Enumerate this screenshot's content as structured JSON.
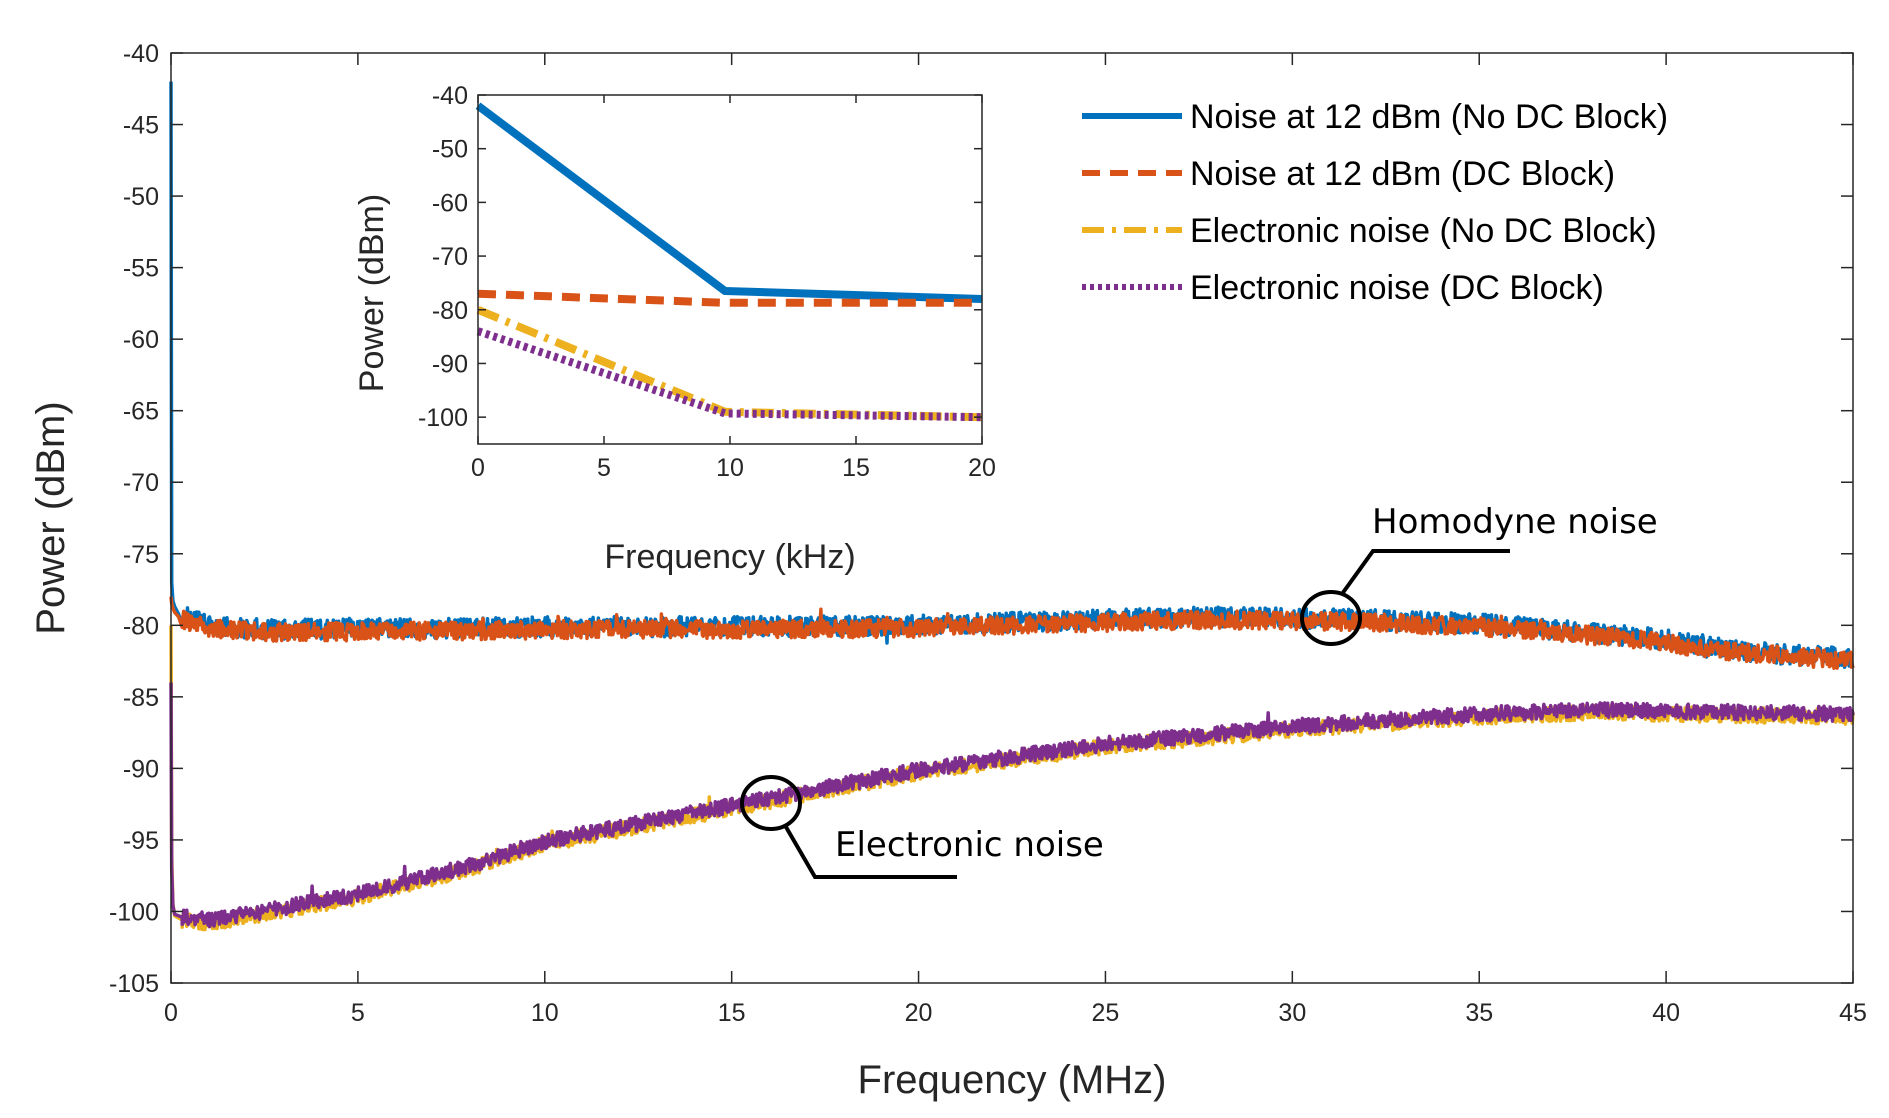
{
  "chart_data": [
    {
      "type": "line",
      "xlabel": "Frequency (MHz)",
      "ylabel": "Power (dBm)",
      "xlim": [
        0,
        45
      ],
      "ylim": [
        -105,
        -40
      ],
      "xticks": [
        0,
        5,
        10,
        15,
        20,
        25,
        30,
        35,
        40,
        45
      ],
      "yticks": [
        -105,
        -100,
        -95,
        -90,
        -85,
        -80,
        -75,
        -70,
        -65,
        -60,
        -55,
        -50,
        -45,
        -40
      ],
      "legend_position": "top-right",
      "series": [
        {
          "name": "Noise at 12 dBm (No DC Block)",
          "color": "#0072BD",
          "style": "solid",
          "x": [
            0,
            0.02,
            0.05,
            0.1,
            0.2,
            0.5,
            1,
            2,
            3,
            5,
            8,
            10,
            15,
            20,
            25,
            28,
            30,
            32,
            35,
            38,
            40,
            41,
            43,
            45
          ],
          "y": [
            -42,
            -77,
            -78.3,
            -78.7,
            -79.2,
            -79.5,
            -80,
            -80.2,
            -80.3,
            -80.2,
            -80.2,
            -80.1,
            -80.1,
            -80,
            -79.6,
            -79.4,
            -79.5,
            -79.6,
            -79.9,
            -80.5,
            -81,
            -81.5,
            -82,
            -82.3
          ]
        },
        {
          "name": "Noise at 12 dBm (DC Block)",
          "color": "#D95319",
          "style": "dashed",
          "x": [
            0,
            0.02,
            0.05,
            0.1,
            0.2,
            0.5,
            1,
            2,
            3,
            5,
            8,
            10,
            15,
            20,
            25,
            28,
            30,
            32,
            35,
            38,
            40,
            41,
            43,
            45
          ],
          "y": [
            -78,
            -78.5,
            -78.8,
            -79.1,
            -79.4,
            -79.8,
            -80.2,
            -80.4,
            -80.5,
            -80.4,
            -80.4,
            -80.3,
            -80.3,
            -80.2,
            -79.8,
            -79.6,
            -79.7,
            -79.8,
            -80.1,
            -80.7,
            -81.2,
            -81.7,
            -82.1,
            -82.5
          ]
        },
        {
          "name": "Electronic noise (No DC Block)",
          "color": "#EDB120",
          "style": "dashdot",
          "x": [
            0,
            0.02,
            0.05,
            0.1,
            0.3,
            1,
            2,
            5,
            8,
            10,
            12,
            15,
            18,
            20,
            25,
            30,
            32,
            35,
            38,
            40,
            45
          ],
          "y": [
            -80,
            -96,
            -99.5,
            -100.3,
            -100.6,
            -100.8,
            -100.4,
            -99,
            -97,
            -95.3,
            -94.3,
            -92.8,
            -91.3,
            -90.3,
            -88.5,
            -87.3,
            -86.9,
            -86.4,
            -86.1,
            -86.2,
            -86.4
          ]
        },
        {
          "name": "Electronic noise (DC Block)",
          "color": "#7E2F8E",
          "style": "dotted",
          "x": [
            0,
            0.02,
            0.05,
            0.1,
            0.3,
            1,
            2,
            5,
            8,
            10,
            12,
            15,
            18,
            20,
            25,
            30,
            32,
            35,
            38,
            40,
            45
          ],
          "y": [
            -84,
            -97,
            -99.6,
            -100.2,
            -100.4,
            -100.6,
            -100.2,
            -98.8,
            -96.8,
            -95.1,
            -94.1,
            -92.6,
            -91.1,
            -90.1,
            -88.3,
            -87.1,
            -86.7,
            -86.2,
            -85.9,
            -86,
            -86.2
          ]
        }
      ],
      "annotations": [
        {
          "text": "Homodyne noise",
          "target_x": 31,
          "target_y": -79.8
        },
        {
          "text": "Electronic noise",
          "target_x": 16,
          "target_y": -92.5
        }
      ]
    },
    {
      "type": "line",
      "role": "inset",
      "xlabel": "Frequency (kHz)",
      "ylabel": "Power (dBm)",
      "xlim": [
        0,
        20
      ],
      "ylim": [
        -105,
        -40
      ],
      "xticks": [
        0,
        5,
        10,
        15,
        20
      ],
      "yticks": [
        -100,
        -90,
        -80,
        -70,
        -60,
        -50,
        -40
      ],
      "series": [
        {
          "name": "Noise at 12 dBm (No DC Block)",
          "color": "#0072BD",
          "style": "solid",
          "x": [
            0,
            9.8,
            20
          ],
          "y": [
            -42,
            -76.5,
            -78
          ]
        },
        {
          "name": "Noise at 12 dBm (DC Block)",
          "color": "#D95319",
          "style": "dashed",
          "x": [
            0,
            9.8,
            20
          ],
          "y": [
            -77,
            -78.7,
            -78.7
          ]
        },
        {
          "name": "Electronic noise (No DC Block)",
          "color": "#EDB120",
          "style": "dashdot",
          "x": [
            0,
            9.8,
            20
          ],
          "y": [
            -80,
            -99,
            -100
          ]
        },
        {
          "name": "Electronic noise (DC Block)",
          "color": "#7E2F8E",
          "style": "dotted",
          "x": [
            0,
            9.8,
            20
          ],
          "y": [
            -84,
            -99.3,
            -100
          ]
        }
      ]
    }
  ]
}
